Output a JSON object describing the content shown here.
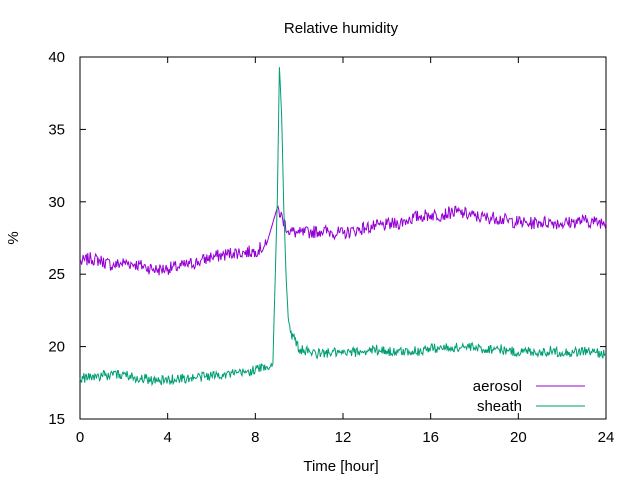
{
  "chart_data": {
    "type": "line",
    "title": "Relative humidity",
    "xlabel": "Time [hour]",
    "ylabel": "%",
    "xlim": [
      0,
      24
    ],
    "ylim": [
      15,
      40
    ],
    "x_ticks": [
      0,
      4,
      8,
      12,
      16,
      20,
      24
    ],
    "y_ticks": [
      15,
      20,
      25,
      30,
      35,
      40
    ],
    "legend_position": "bottom-right",
    "grid": false,
    "series": [
      {
        "name": "aerosol",
        "color": "#9400d3",
        "x": [
          0,
          0.5,
          1,
          1.5,
          2,
          2.5,
          3,
          3.5,
          4,
          4.5,
          5,
          5.5,
          6,
          6.5,
          7,
          7.5,
          8,
          8.5,
          9,
          9.5,
          10,
          10.5,
          11,
          11.5,
          12,
          12.5,
          13,
          13.5,
          14,
          14.5,
          15,
          15.5,
          16,
          16.5,
          17,
          17.5,
          18,
          18.5,
          19,
          19.5,
          20,
          20.5,
          21,
          21.5,
          22,
          22.5,
          23,
          23.5,
          24
        ],
        "y": [
          25.8,
          26.1,
          25.9,
          25.6,
          25.8,
          25.7,
          25.5,
          25.3,
          25.4,
          25.5,
          25.7,
          25.9,
          26.2,
          26.3,
          26.5,
          26.5,
          26.6,
          27.0,
          29.6,
          28.0,
          27.8,
          27.9,
          28.0,
          27.9,
          27.8,
          28.0,
          28.2,
          28.3,
          28.4,
          28.5,
          28.8,
          29.0,
          29.1,
          29.1,
          29.3,
          29.2,
          29.0,
          28.9,
          28.9,
          28.7,
          28.6,
          28.5,
          28.6,
          28.6,
          28.5,
          28.6,
          28.7,
          28.6,
          28.6
        ]
      },
      {
        "name": "sheath",
        "color": "#009e73",
        "x": [
          0,
          0.5,
          1,
          1.5,
          2,
          2.5,
          3,
          3.5,
          4,
          4.5,
          5,
          5.5,
          6,
          6.5,
          7,
          7.5,
          8,
          8.5,
          8.8,
          9.0,
          9.1,
          9.2,
          9.3,
          9.4,
          9.5,
          9.6,
          9.8,
          10,
          10.5,
          11,
          11.5,
          12,
          12.5,
          13,
          13.5,
          14,
          14.5,
          15,
          15.5,
          16,
          16.5,
          17,
          17.5,
          18,
          18.5,
          19,
          19.5,
          20,
          20.5,
          21,
          21.5,
          22,
          22.5,
          23,
          23.5,
          24
        ],
        "y": [
          17.8,
          17.9,
          18.0,
          18.0,
          18.1,
          17.9,
          17.8,
          17.6,
          17.7,
          17.8,
          17.8,
          17.9,
          18.0,
          18.1,
          18.1,
          18.2,
          18.4,
          18.6,
          18.8,
          30.0,
          39.3,
          36.0,
          29.5,
          25.0,
          22.0,
          21.0,
          20.5,
          19.8,
          19.6,
          19.5,
          19.6,
          19.5,
          19.6,
          19.7,
          19.8,
          19.7,
          19.6,
          19.7,
          19.7,
          19.9,
          19.9,
          19.9,
          20.0,
          19.9,
          19.8,
          19.9,
          19.7,
          19.6,
          19.7,
          19.6,
          19.7,
          19.6,
          19.6,
          19.7,
          19.6,
          19.5
        ]
      }
    ]
  }
}
